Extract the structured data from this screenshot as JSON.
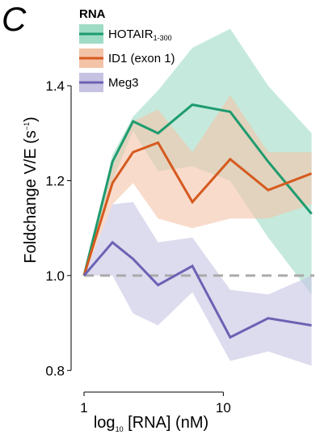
{
  "panel_label": "C",
  "chart_data": {
    "type": "line",
    "xlabel_prefix": "log",
    "xlabel_sub": "10",
    "xlabel_rest": " [RNA] (nM)",
    "ylabel_main": "Foldchange V/E (s",
    "ylabel_sup": "−1",
    "ylabel_close": ")",
    "x_scale": "log",
    "xlim": [
      0.8,
      45
    ],
    "ylim": [
      0.78,
      1.55
    ],
    "x_ticks": [
      1,
      10
    ],
    "x_tick_labels": [
      "1",
      "10"
    ],
    "y_ticks": [
      0.8,
      1.0,
      1.2,
      1.4
    ],
    "y_tick_labels": [
      "0.8",
      "1.0",
      "1.2",
      "1.4"
    ],
    "reference_line": 1.0,
    "legend": {
      "title": "RNA",
      "placement": "top-left"
    },
    "x": [
      1,
      1.6,
      2.25,
      3.4,
      6,
      11.2,
      21,
      43
    ],
    "series": [
      {
        "name": "HOTAIR",
        "name_sub": "1-300",
        "color": "#1e9b6e",
        "band_color": "#9fdcc6",
        "values": [
          1.0,
          1.24,
          1.325,
          1.3,
          1.36,
          1.345,
          1.24,
          1.13
        ],
        "lower": [
          1.0,
          1.2,
          1.305,
          1.22,
          1.23,
          1.2,
          1.08,
          0.96
        ],
        "upper": [
          1.0,
          1.255,
          1.335,
          1.39,
          1.48,
          1.52,
          1.4,
          1.3
        ]
      },
      {
        "name": "ID1 (exon 1)",
        "name_sub": "",
        "color": "#d65a1f",
        "band_color": "#f3c3a8",
        "values": [
          1.0,
          1.195,
          1.26,
          1.28,
          1.155,
          1.245,
          1.18,
          1.215
        ],
        "lower": [
          1.0,
          1.15,
          1.195,
          1.12,
          1.1,
          1.12,
          1.12,
          1.15
        ],
        "upper": [
          1.0,
          1.23,
          1.325,
          1.35,
          1.26,
          1.38,
          1.26,
          1.26
        ]
      },
      {
        "name": "Meg3",
        "name_sub": "",
        "color": "#6b62b4",
        "band_color": "#c6c3e2",
        "values": [
          1.0,
          1.07,
          1.035,
          0.98,
          1.02,
          0.87,
          0.91,
          0.895
        ],
        "lower": [
          1.0,
          1.0,
          0.92,
          0.895,
          0.965,
          0.82,
          0.84,
          0.81
        ],
        "upper": [
          1.0,
          1.15,
          1.155,
          1.07,
          1.08,
          0.97,
          0.96,
          1.0
        ]
      }
    ]
  }
}
